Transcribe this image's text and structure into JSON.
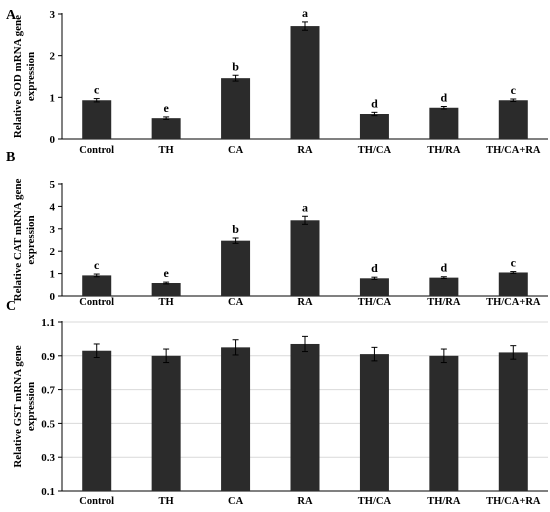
{
  "chart_data": [
    {
      "type": "bar",
      "panel_letter": "A",
      "ylabel": "Relative SOD mRNA gene expression",
      "ylabel_lines": [
        "Relative SOD mRNA gene",
        "expression"
      ],
      "categories": [
        "Control",
        "TH",
        "CA",
        "RA",
        "TH/CA",
        "TH/RA",
        "TH/CA+RA"
      ],
      "values": [
        0.93,
        0.5,
        1.46,
        2.71,
        0.6,
        0.75,
        0.93
      ],
      "errors": [
        0.04,
        0.03,
        0.07,
        0.1,
        0.04,
        0.03,
        0.03
      ],
      "letters": [
        "c",
        "e",
        "b",
        "a",
        "d",
        "d",
        "c"
      ],
      "ylim": [
        0,
        3
      ],
      "yticks": [
        0,
        1,
        2,
        3
      ],
      "ytick_labels": [
        "0",
        "1",
        "2",
        "3"
      ],
      "grid": false,
      "bar_color": "#2b2b2b"
    },
    {
      "type": "bar",
      "panel_letter": "B",
      "ylabel": "Relative CAT mRNA gene expression",
      "ylabel_lines": [
        "Relative CAT mRNA gene",
        "expression"
      ],
      "categories": [
        "Control",
        "TH",
        "CA",
        "RA",
        "TH/CA",
        "TH/RA",
        "TH/CA+RA"
      ],
      "values": [
        0.92,
        0.58,
        2.47,
        3.38,
        0.79,
        0.82,
        1.05
      ],
      "errors": [
        0.06,
        0.04,
        0.12,
        0.18,
        0.05,
        0.04,
        0.04
      ],
      "letters": [
        "c",
        "e",
        "b",
        "a",
        "d",
        "d",
        "c"
      ],
      "ylim": [
        0,
        5
      ],
      "yticks": [
        0,
        1,
        2,
        3,
        4,
        5
      ],
      "ytick_labels": [
        "0",
        "1",
        "2",
        "3",
        "4",
        "5"
      ],
      "grid": false,
      "bar_color": "#2b2b2b"
    },
    {
      "type": "bar",
      "panel_letter": "C",
      "ylabel": "Relative GST mRNA gene expression",
      "ylabel_lines": [
        "Relative GST mRNA gene",
        "expression"
      ],
      "categories": [
        "Control",
        "TH",
        "CA",
        "RA",
        "TH/CA",
        "TH/RA",
        "TH/CA+RA"
      ],
      "values": [
        0.93,
        0.9,
        0.95,
        0.97,
        0.91,
        0.9,
        0.92
      ],
      "errors": [
        0.04,
        0.04,
        0.045,
        0.045,
        0.04,
        0.04,
        0.04
      ],
      "letters": [],
      "ylim": [
        0.1,
        1.1
      ],
      "yticks": [
        0.1,
        0.3,
        0.5,
        0.7,
        0.9,
        1.1
      ],
      "ytick_labels": [
        "0.1",
        "0.3",
        "0.5",
        "0.7",
        "0.9",
        "1.1"
      ],
      "grid": true,
      "bar_color": "#2b2b2b"
    }
  ]
}
